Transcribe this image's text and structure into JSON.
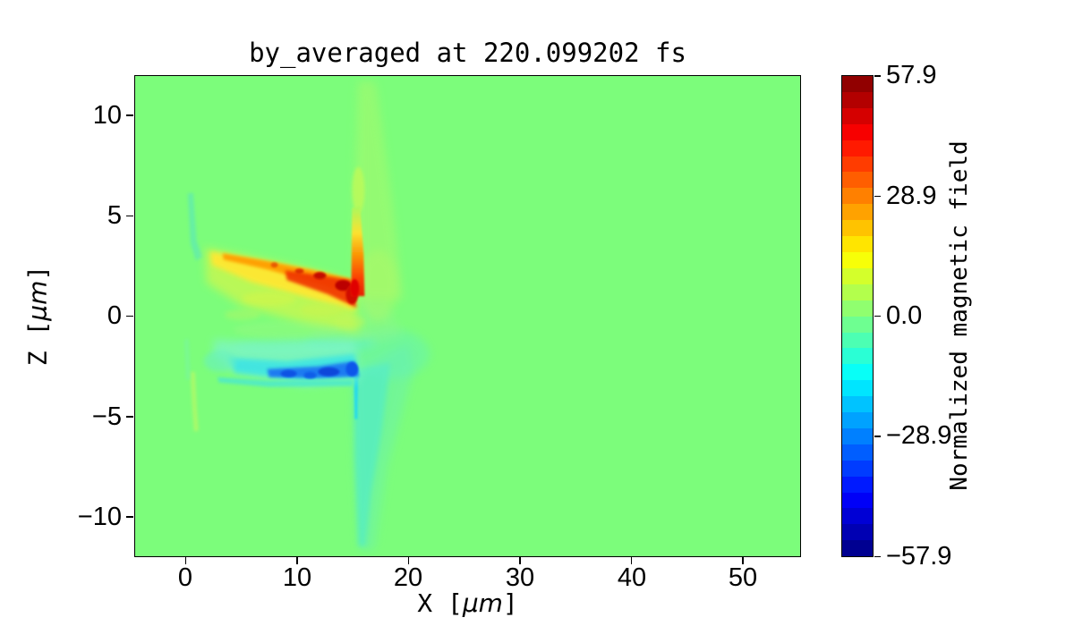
{
  "figure": {
    "title": "by_averaged at 220.099202 fs",
    "xlabel": {
      "pre": "X [",
      "mu": "μm",
      "post": "]"
    },
    "ylabel": {
      "pre": "Z [",
      "mu": "μm",
      "post": "]"
    },
    "colorbar_label": "Normalized magnetic field"
  },
  "axes": {
    "x_ticks": [
      "0",
      "10",
      "20",
      "30",
      "40",
      "50"
    ],
    "y_ticks": [
      "10",
      "5",
      "0",
      "−5",
      "−10"
    ],
    "xlim_um": [
      -4.6,
      55.2
    ],
    "zlim_um": [
      -12,
      12
    ]
  },
  "colorbar": {
    "ticks": [
      "57.9",
      "28.9",
      "0.0",
      "−28.9",
      "−57.9"
    ],
    "vmin": -57.9,
    "vmax": 57.9,
    "colormap": "jet",
    "levels": 30,
    "background_zero_color": "#7CFD7B"
  },
  "chart_data": {
    "type": "heatmap",
    "title": "by_averaged at 220.099202 fs",
    "xlabel": "X [μm]",
    "ylabel": "Z [μm]",
    "colorbar_label": "Normalized magnetic field",
    "colormap": "jet",
    "value_range": [
      -57.9,
      57.9
    ],
    "colorbar_tick_values": [
      57.9,
      28.9,
      0.0,
      -28.9,
      -57.9
    ],
    "x_range_um": [
      -4.6,
      55.2
    ],
    "z_range_um": [
      -12,
      12
    ],
    "background_value": 0.0,
    "sampled_grid": {
      "note": "field values estimated from pixel colors via the jet colorbar",
      "x_um": [
        0,
        2,
        4,
        6,
        8,
        10,
        12,
        14,
        16,
        18,
        20
      ],
      "z_um": [
        4,
        3,
        2,
        1,
        0,
        -1,
        -2,
        -3,
        -4
      ],
      "values": [
        [
          0,
          0,
          3,
          2,
          0,
          0,
          0,
          0,
          0,
          0,
          0
        ],
        [
          0,
          8,
          18,
          12,
          6,
          3,
          0,
          0,
          2,
          0,
          0
        ],
        [
          0,
          5,
          22,
          30,
          36,
          42,
          48,
          55,
          25,
          3,
          0
        ],
        [
          0,
          2,
          10,
          16,
          22,
          28,
          35,
          52,
          18,
          3,
          0
        ],
        [
          0,
          0,
          2,
          3,
          3,
          2,
          2,
          3,
          2,
          1,
          0
        ],
        [
          0,
          0,
          -5,
          -10,
          -14,
          -17,
          -19,
          -22,
          -10,
          -3,
          0
        ],
        [
          0,
          -8,
          -16,
          -24,
          -30,
          -35,
          -42,
          -52,
          -20,
          -4,
          0
        ],
        [
          0,
          -12,
          -8,
          -6,
          -5,
          -5,
          -6,
          -8,
          -12,
          -5,
          0
        ],
        [
          0,
          -2,
          -2,
          -1,
          -1,
          -1,
          -1,
          -2,
          -5,
          -2,
          0
        ]
      ]
    },
    "features": [
      {
        "name": "positive_band",
        "x_um": [
          1,
          15.5
        ],
        "z_um": [
          1.2,
          3.6
        ],
        "peak_value": 57,
        "description": "tilted yellow-orange-red band sloping down to the right, most intense (dark red) near x≈13-15, z≈1.5-2.5"
      },
      {
        "name": "negative_band",
        "x_um": [
          2.5,
          15.7
        ],
        "z_um": [
          -3,
          -0.5
        ],
        "peak_value": -52,
        "description": "cyan band with dark-blue core along z≈-2…-2.6 for x≈7-15.5"
      },
      {
        "name": "vertical_front",
        "x_um": [
          15,
          16
        ],
        "z_um": [
          1,
          6
        ],
        "peak_value": 40,
        "description": "narrow red→yellow vertical strip at x≈15.4 rising from the positive band"
      },
      {
        "name": "upper_plume",
        "x_um": [
          15,
          19
        ],
        "z_um": [
          1,
          11.8
        ],
        "peak_value": 6,
        "description": "faint yellow-green plume extending to the top of the box"
      },
      {
        "name": "lower_plume",
        "x_um": [
          15,
          19.5
        ],
        "z_um": [
          -11.8,
          -3
        ],
        "peak_value": -12,
        "description": "pale teal wedge narrowing downward with a thin bright cyan line at x≈15.5"
      },
      {
        "name": "left_streaks",
        "x_um": [
          -0.5,
          1
        ],
        "z_um": [
          -5.5,
          6
        ],
        "peak_value": -8,
        "description": "faint teal streak (z≈3.5…6) and yellow-green streak (z≈-3…-5.5) near x≈0.5"
      },
      {
        "name": "right_ripples",
        "x_um": [
          16,
          20
        ],
        "z_um": [
          -4,
          3
        ],
        "peak_value": 8,
        "description": "fading warm/cool ripple arcs to the right of the two lobes"
      }
    ]
  }
}
